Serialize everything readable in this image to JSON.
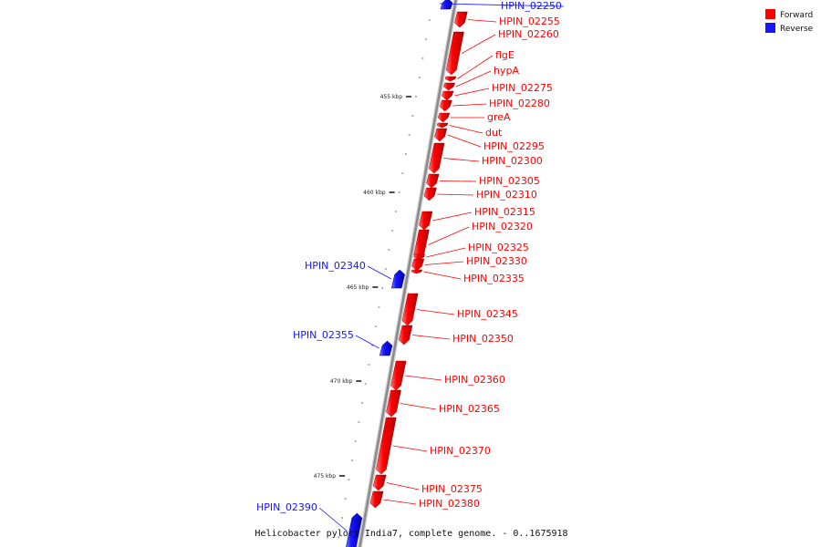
{
  "legend": {
    "forward_label": "Forward",
    "reverse_label": "Reverse",
    "forward_color": "#ff0000",
    "reverse_color": "#1515ff"
  },
  "caption": "Helicobacter pylori India7, complete genome. - 0..1675918",
  "axis": {
    "tick_labels": [
      "455 kbp",
      "460 kbp",
      "465 kbp",
      "470 kbp",
      "475 kbp"
    ],
    "line_color": "#8a8a8a"
  },
  "genes": [
    {
      "name": "HPIN_02250",
      "strand": "reverse"
    },
    {
      "name": "HPIN_02255",
      "strand": "forward"
    },
    {
      "name": "HPIN_02260",
      "strand": "forward"
    },
    {
      "name": "flgE",
      "strand": "forward"
    },
    {
      "name": "hypA",
      "strand": "forward"
    },
    {
      "name": "HPIN_02275",
      "strand": "forward"
    },
    {
      "name": "HPIN_02280",
      "strand": "forward"
    },
    {
      "name": "greA",
      "strand": "forward"
    },
    {
      "name": "dut",
      "strand": "forward"
    },
    {
      "name": "HPIN_02295",
      "strand": "forward"
    },
    {
      "name": "HPIN_02300",
      "strand": "forward"
    },
    {
      "name": "HPIN_02305",
      "strand": "forward"
    },
    {
      "name": "HPIN_02310",
      "strand": "forward"
    },
    {
      "name": "HPIN_02315",
      "strand": "forward"
    },
    {
      "name": "HPIN_02320",
      "strand": "forward"
    },
    {
      "name": "HPIN_02325",
      "strand": "forward"
    },
    {
      "name": "HPIN_02330",
      "strand": "forward"
    },
    {
      "name": "HPIN_02335",
      "strand": "forward"
    },
    {
      "name": "HPIN_02340",
      "strand": "reverse"
    },
    {
      "name": "HPIN_02345",
      "strand": "forward"
    },
    {
      "name": "HPIN_02350",
      "strand": "forward"
    },
    {
      "name": "HPIN_02355",
      "strand": "reverse"
    },
    {
      "name": "HPIN_02360",
      "strand": "forward"
    },
    {
      "name": "HPIN_02365",
      "strand": "forward"
    },
    {
      "name": "HPIN_02370",
      "strand": "forward"
    },
    {
      "name": "HPIN_02375",
      "strand": "forward"
    },
    {
      "name": "HPIN_02380",
      "strand": "forward"
    },
    {
      "name": "HPIN_02390",
      "strand": "reverse"
    }
  ]
}
